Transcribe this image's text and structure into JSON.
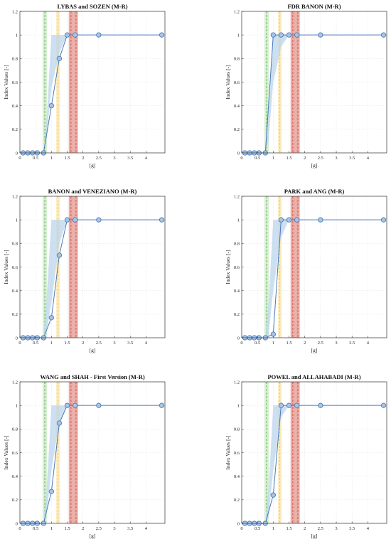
{
  "colors": {
    "line": "#4a7ab8",
    "marker_fill": "#a9c5e6",
    "band_fill": "#bcd5ee",
    "green": "#5bb85b",
    "green_band": "#cdeac4",
    "yellow": "#f0c35a",
    "yellow_band": "#fbe7b0",
    "red": "#d9574e",
    "red_band": "#e39a92",
    "grid": "#e6e6e6",
    "axis": "#333333"
  },
  "chart_data": [
    {
      "type": "line",
      "title": "LYBAS and SOZEN (M-R)",
      "xlabel": "[g]",
      "ylabel": "Index Values [-]",
      "xlim": [
        0,
        4.6
      ],
      "ylim": [
        0,
        1.2
      ],
      "xticks": [
        "0",
        "0.5",
        "1",
        "1.5",
        "2",
        "2.5",
        "3",
        "3.5",
        "4"
      ],
      "yticks": [
        "0",
        "0.2",
        "0.4",
        "0.6",
        "0.8",
        "1",
        "1.2"
      ],
      "grid": true,
      "x": [
        0.1,
        0.25,
        0.4,
        0.55,
        0.75,
        1.0,
        1.25,
        1.5,
        1.75,
        2.5,
        4.5
      ],
      "y": [
        0,
        0,
        0,
        0,
        0,
        0.4,
        0.8,
        1,
        1,
        1,
        1
      ],
      "band": {
        "x": [
          0.75,
          0.85,
          1.0,
          1.25,
          1.5,
          1.75
        ],
        "lower": [
          0,
          0.15,
          0.55,
          0.85,
          1,
          1
        ],
        "upper": [
          0,
          0.3,
          1,
          1,
          1,
          1
        ]
      },
      "vlines": [
        {
          "color": "green",
          "x": 0.79,
          "band": [
            0.72,
            0.86
          ]
        },
        {
          "color": "yellow",
          "x": 1.21,
          "band": [
            1.15,
            1.27
          ]
        },
        {
          "color": "red",
          "x": 1.62,
          "band": [
            1.55,
            1.7
          ]
        },
        {
          "color": "red",
          "x": 1.78,
          "band": [
            1.7,
            1.84
          ]
        }
      ]
    },
    {
      "type": "line",
      "title": "FDR BANON (M-R)",
      "xlabel": "[g]",
      "ylabel": "Index Values [-]",
      "xlim": [
        0,
        4.6
      ],
      "ylim": [
        0,
        1.2
      ],
      "xticks": [
        "0",
        "0.5",
        "1",
        "1.5",
        "2",
        "2.5",
        "3",
        "3.5",
        "4"
      ],
      "yticks": [
        "0",
        "0.2",
        "0.4",
        "0.6",
        "0.8",
        "1",
        "1.2"
      ],
      "grid": true,
      "x": [
        0.1,
        0.25,
        0.4,
        0.55,
        0.75,
        1.0,
        1.25,
        1.5,
        1.75,
        2.5,
        4.5
      ],
      "y": [
        0,
        0,
        0,
        0,
        0,
        1,
        1,
        1,
        1,
        1,
        1
      ],
      "band": {
        "x": [
          0.75,
          0.85,
          1.0,
          1.25,
          1.5,
          1.75
        ],
        "lower": [
          0,
          0.1,
          0.6,
          0.9,
          1,
          1
        ],
        "upper": [
          0,
          0.35,
          1,
          1,
          1,
          1
        ]
      },
      "vlines": [
        {
          "color": "green",
          "x": 0.79,
          "band": [
            0.72,
            0.86
          ]
        },
        {
          "color": "yellow",
          "x": 1.21,
          "band": [
            1.15,
            1.27
          ]
        },
        {
          "color": "red",
          "x": 1.62,
          "band": [
            1.55,
            1.7
          ]
        },
        {
          "color": "red",
          "x": 1.78,
          "band": [
            1.7,
            1.84
          ]
        }
      ]
    },
    {
      "type": "line",
      "title": "BANON and VENEZIANO (M-R)",
      "xlabel": "[g]",
      "ylabel": "Index Values [-]",
      "xlim": [
        0,
        4.6
      ],
      "ylim": [
        0,
        1.2
      ],
      "xticks": [
        "0",
        "0.5",
        "1",
        "1.5",
        "2",
        "2.5",
        "3",
        "3.5",
        "4"
      ],
      "yticks": [
        "0",
        "0.2",
        "0.4",
        "0.6",
        "0.8",
        "1",
        "1.2"
      ],
      "grid": true,
      "x": [
        0.1,
        0.25,
        0.4,
        0.55,
        0.75,
        1.0,
        1.25,
        1.5,
        1.75,
        2.5,
        4.5
      ],
      "y": [
        0,
        0,
        0,
        0,
        0,
        0.17,
        0.7,
        1,
        1,
        1,
        1
      ],
      "band": {
        "x": [
          0.75,
          0.85,
          1.0,
          1.25,
          1.5,
          1.75
        ],
        "lower": [
          0,
          0.05,
          0.3,
          0.8,
          1,
          1
        ],
        "upper": [
          0,
          0.35,
          1,
          1,
          1,
          1
        ]
      },
      "vlines": [
        {
          "color": "green",
          "x": 0.79,
          "band": [
            0.72,
            0.86
          ]
        },
        {
          "color": "yellow",
          "x": 1.21,
          "band": [
            1.15,
            1.27
          ]
        },
        {
          "color": "red",
          "x": 1.62,
          "band": [
            1.55,
            1.7
          ]
        },
        {
          "color": "red",
          "x": 1.78,
          "band": [
            1.7,
            1.84
          ]
        }
      ]
    },
    {
      "type": "line",
      "title": "PARK and ANG (M-R)",
      "xlabel": "[g]",
      "ylabel": "Index Values [-]",
      "xlim": [
        0,
        4.6
      ],
      "ylim": [
        0,
        1.2
      ],
      "xticks": [
        "0",
        "0.5",
        "1",
        "1.5",
        "2",
        "2.5",
        "3",
        "3.5",
        "4"
      ],
      "yticks": [
        "0",
        "0.2",
        "0.4",
        "0.6",
        "0.8",
        "1",
        "1.2"
      ],
      "grid": true,
      "x": [
        0.1,
        0.25,
        0.4,
        0.55,
        0.75,
        1.0,
        1.25,
        1.5,
        1.75,
        2.5,
        4.5
      ],
      "y": [
        0,
        0,
        0,
        0,
        0,
        0.03,
        1,
        1,
        1,
        1,
        1
      ],
      "band": {
        "x": [
          0.75,
          0.85,
          1.0,
          1.25,
          1.5,
          1.75
        ],
        "lower": [
          0,
          0.02,
          0.4,
          0.85,
          1,
          1
        ],
        "upper": [
          0,
          0.3,
          1,
          1,
          1,
          1
        ]
      },
      "vlines": [
        {
          "color": "green",
          "x": 0.79,
          "band": [
            0.72,
            0.86
          ]
        },
        {
          "color": "yellow",
          "x": 1.21,
          "band": [
            1.15,
            1.27
          ]
        },
        {
          "color": "red",
          "x": 1.62,
          "band": [
            1.55,
            1.7
          ]
        },
        {
          "color": "red",
          "x": 1.78,
          "band": [
            1.7,
            1.84
          ]
        }
      ]
    },
    {
      "type": "line",
      "title": "WANG and SHAH - First Version (M-R)",
      "xlabel": "[g]",
      "ylabel": "Index Values [-]",
      "xlim": [
        0,
        4.6
      ],
      "ylim": [
        0,
        1.2
      ],
      "xticks": [
        "0",
        "0.5",
        "1",
        "1.5",
        "2",
        "2.5",
        "3",
        "3.5",
        "4"
      ],
      "yticks": [
        "0",
        "0.2",
        "0.4",
        "0.6",
        "0.8",
        "1",
        "1.2"
      ],
      "grid": true,
      "x": [
        0.1,
        0.25,
        0.4,
        0.55,
        0.75,
        1.0,
        1.25,
        1.5,
        1.75,
        2.5,
        4.5
      ],
      "y": [
        0,
        0,
        0,
        0,
        0,
        0.27,
        0.85,
        1,
        1,
        1,
        1
      ],
      "band": {
        "x": [
          0.75,
          0.85,
          1.0,
          1.25,
          1.5,
          1.75
        ],
        "lower": [
          0,
          0.08,
          0.45,
          0.85,
          1,
          1
        ],
        "upper": [
          0,
          0.3,
          1,
          1,
          1,
          1
        ]
      },
      "vlines": [
        {
          "color": "green",
          "x": 0.79,
          "band": [
            0.72,
            0.86
          ]
        },
        {
          "color": "yellow",
          "x": 1.21,
          "band": [
            1.15,
            1.27
          ]
        },
        {
          "color": "red",
          "x": 1.62,
          "band": [
            1.55,
            1.7
          ]
        },
        {
          "color": "red",
          "x": 1.78,
          "band": [
            1.7,
            1.84
          ]
        }
      ]
    },
    {
      "type": "line",
      "title": "POWEL and ALLAHABADI (M-R)",
      "xlabel": "[g]",
      "ylabel": "Index Values [-]",
      "xlim": [
        0,
        4.6
      ],
      "ylim": [
        0,
        1.2
      ],
      "xticks": [
        "0",
        "0.5",
        "1",
        "1.5",
        "2",
        "2.5",
        "3",
        "3.5",
        "4"
      ],
      "yticks": [
        "0",
        "0.2",
        "0.4",
        "0.6",
        "0.8",
        "1",
        "1.2"
      ],
      "grid": true,
      "x": [
        0.1,
        0.25,
        0.4,
        0.55,
        0.75,
        1.0,
        1.25,
        1.5,
        1.75,
        2.5,
        4.5
      ],
      "y": [
        0,
        0,
        0,
        0,
        0,
        0.24,
        1,
        1,
        1,
        1,
        1
      ],
      "band": {
        "x": [
          0.75,
          0.85,
          1.0,
          1.25,
          1.5,
          1.75
        ],
        "lower": [
          0,
          0.05,
          0.45,
          0.9,
          1,
          1
        ],
        "upper": [
          0,
          0.3,
          1,
          1,
          1,
          1
        ]
      },
      "vlines": [
        {
          "color": "green",
          "x": 0.79,
          "band": [
            0.72,
            0.86
          ]
        },
        {
          "color": "yellow",
          "x": 1.21,
          "band": [
            1.15,
            1.27
          ]
        },
        {
          "color": "red",
          "x": 1.62,
          "band": [
            1.55,
            1.7
          ]
        },
        {
          "color": "red",
          "x": 1.78,
          "band": [
            1.7,
            1.84
          ]
        }
      ]
    }
  ]
}
